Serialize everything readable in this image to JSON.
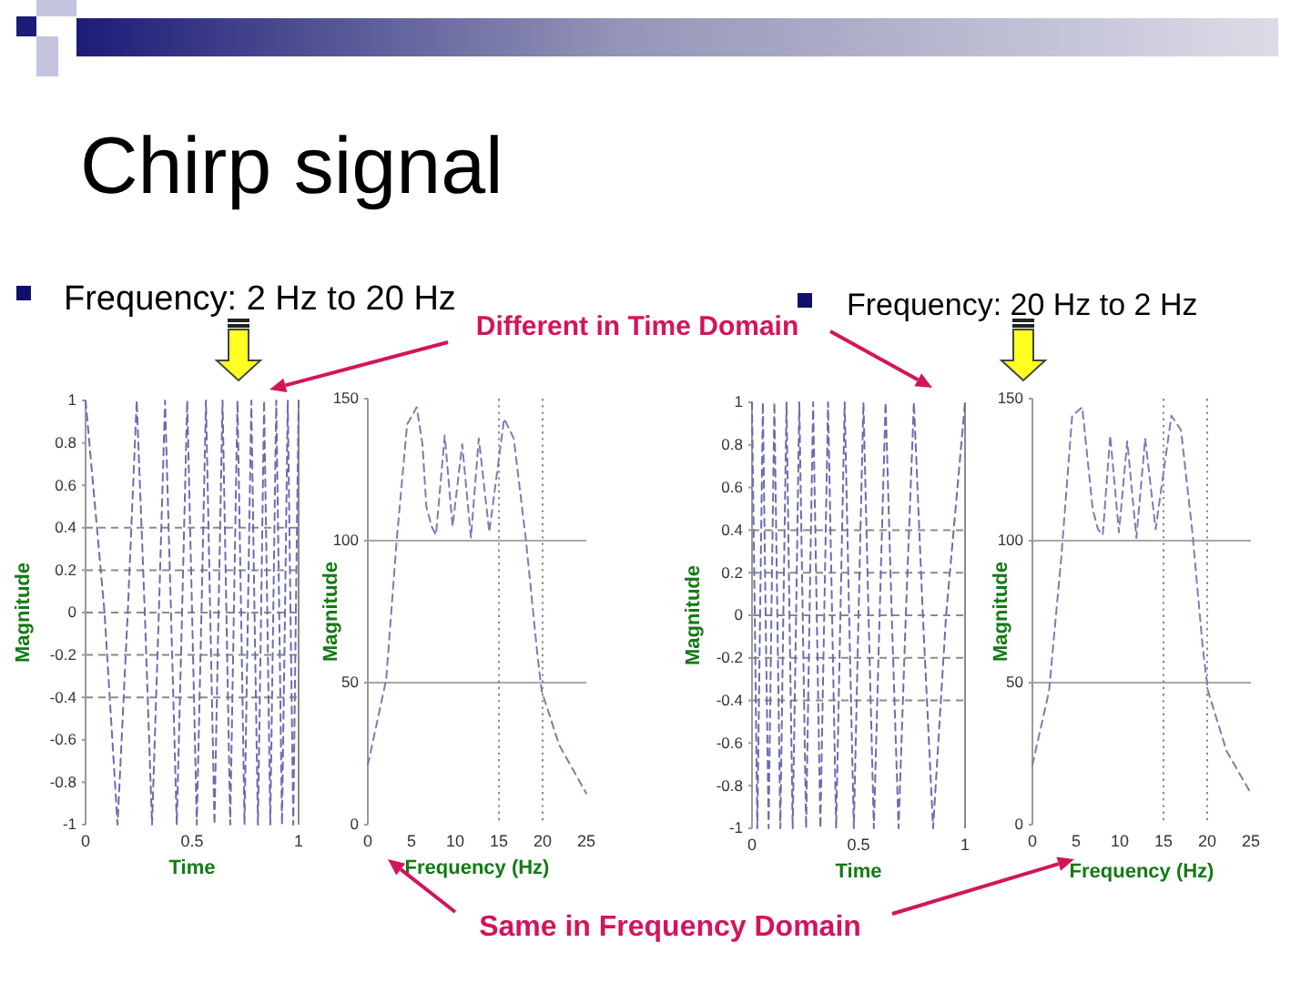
{
  "chart_data": [
    {
      "type": "line",
      "title": "Chirp signal",
      "subtitle": "Frequency: 2 Hz to 20 Hz",
      "xlabel": "Time",
      "ylabel": "Magnitude",
      "annotations": [
        "Different in Time Domain"
      ],
      "x": [
        0,
        0.089,
        0.15,
        0.198,
        0.24,
        0.278,
        0.312,
        0.344,
        0.373,
        0.401,
        0.428,
        0.453,
        0.477,
        0.5,
        0.522,
        0.544,
        0.565,
        0.585,
        0.605,
        0.624,
        0.643,
        0.661,
        0.679,
        0.696,
        0.713,
        0.73,
        0.746,
        0.762,
        0.778,
        0.793,
        0.809,
        0.824,
        0.838,
        0.853,
        0.867,
        0.881,
        0.895,
        0.909,
        0.922,
        0.936,
        0.949,
        0.962,
        0.975,
        0.987,
        1
      ],
      "series": [
        {
          "color": "#6c6cb0",
          "values": [
            1,
            0,
            -1,
            0,
            1,
            0,
            -1,
            0,
            1,
            0,
            -1,
            0,
            1,
            0,
            -1,
            0,
            1,
            0,
            -1,
            0,
            1,
            0,
            -1,
            0,
            1,
            0,
            -1,
            0,
            1,
            0,
            -1,
            0,
            1,
            0,
            -1,
            0,
            1,
            0,
            -1,
            0,
            1,
            0,
            -1,
            0,
            1
          ]
        }
      ],
      "xlim": [
        0,
        1
      ],
      "ylim": [
        -1,
        1
      ],
      "xticks": [
        0,
        0.5,
        1
      ],
      "yticks": [
        1,
        0.8,
        0.6,
        0.4,
        0.2,
        0,
        -0.2,
        -0.4,
        -0.6,
        -0.8,
        -1
      ],
      "ref_lines": [
        {
          "axis": "y",
          "value": 0.4,
          "line_style": "dashed",
          "color": "#8a8a8a"
        },
        {
          "axis": "y",
          "value": 0.2,
          "line_style": "dashed",
          "color": "#8a8a8a"
        },
        {
          "axis": "y",
          "value": 0,
          "line_style": "dashed",
          "color": "#8a8a8a"
        },
        {
          "axis": "y",
          "value": -0.2,
          "line_style": "dashed",
          "color": "#8a8a8a"
        },
        {
          "axis": "y",
          "value": -0.4,
          "line_style": "dashed",
          "color": "#8a8a8a"
        },
        {
          "axis": "x",
          "value": 1,
          "color": "#8a8a8a"
        }
      ],
      "line_style": "dashed"
    },
    {
      "type": "line",
      "xlabel": "Frequency (Hz)",
      "ylabel": "Magnitude",
      "annotations": [
        "Same in Frequency Domain"
      ],
      "x": [
        0,
        2.1,
        3.3,
        4.5,
        5.6,
        6.25,
        6.7,
        7.3,
        7.8,
        8.8,
        9.7,
        10.8,
        11.8,
        12.7,
        13.9,
        15.6,
        16.7,
        18.1,
        19.4,
        19.9,
        21.9,
        25
      ],
      "series": [
        {
          "color": "#7c7cb4",
          "values": [
            21,
            51,
            100,
            141,
            147,
            134,
            112,
            105,
            102,
            137,
            105,
            134,
            101,
            136,
            103,
            143,
            136,
            100,
            60,
            47,
            28,
            11
          ]
        }
      ],
      "xlim": [
        0,
        25
      ],
      "ylim": [
        0,
        150
      ],
      "xticks": [
        0,
        5,
        10,
        15,
        20,
        25
      ],
      "yticks": [
        0,
        50,
        100,
        150
      ],
      "ref_lines": [
        {
          "axis": "y",
          "value": 100,
          "color": "#a8a8a8"
        },
        {
          "axis": "y",
          "value": 50,
          "color": "#a8a8a8"
        },
        {
          "axis": "x",
          "value": 15,
          "line_style": "dotted",
          "color": "#8a8a8a"
        },
        {
          "axis": "x",
          "value": 20,
          "line_style": "dotted",
          "color": "#8a8a8a"
        }
      ],
      "line_style": "dashed"
    },
    {
      "type": "line",
      "subtitle": "Frequency: 20 Hz to 2 Hz",
      "xlabel": "Time",
      "ylabel": "Magnitude",
      "x": [
        0,
        0.013,
        0.025,
        0.038,
        0.051,
        0.064,
        0.078,
        0.091,
        0.105,
        0.119,
        0.133,
        0.147,
        0.162,
        0.176,
        0.191,
        0.207,
        0.222,
        0.238,
        0.254,
        0.27,
        0.287,
        0.304,
        0.321,
        0.339,
        0.357,
        0.376,
        0.395,
        0.415,
        0.435,
        0.456,
        0.478,
        0.5,
        0.523,
        0.547,
        0.572,
        0.599,
        0.627,
        0.656,
        0.688,
        0.722,
        0.76,
        0.802,
        0.85,
        0.911,
        1
      ],
      "series": [
        {
          "color": "#6c6cb0",
          "values": [
            1,
            0,
            -1,
            0,
            1,
            0,
            -1,
            0,
            1,
            0,
            -1,
            0,
            1,
            0,
            -1,
            0,
            1,
            0,
            -1,
            0,
            1,
            0,
            -1,
            0,
            1,
            0,
            -1,
            0,
            1,
            0,
            -1,
            0,
            1,
            0,
            -1,
            0,
            1,
            0,
            -1,
            0,
            1,
            0,
            -1,
            0,
            1
          ]
        }
      ],
      "xlim": [
        0,
        1
      ],
      "ylim": [
        -1,
        1
      ],
      "xticks": [
        0,
        0.5,
        1
      ],
      "yticks": [
        1,
        0.8,
        0.6,
        0.4,
        0.2,
        0,
        -0.2,
        -0.4,
        -0.6,
        -0.8,
        -1
      ],
      "ref_lines": [
        {
          "axis": "y",
          "value": 0.4,
          "line_style": "dashed",
          "color": "#8a8a8a"
        },
        {
          "axis": "y",
          "value": 0.2,
          "line_style": "dashed",
          "color": "#8a8a8a"
        },
        {
          "axis": "y",
          "value": 0,
          "line_style": "dashed",
          "color": "#8a8a8a"
        },
        {
          "axis": "y",
          "value": -0.2,
          "line_style": "dashed",
          "color": "#8a8a8a"
        },
        {
          "axis": "y",
          "value": -0.4,
          "line_style": "dashed",
          "color": "#8a8a8a"
        },
        {
          "axis": "x",
          "value": 1,
          "color": "#8a8a8a"
        }
      ],
      "line_style": "dashed"
    },
    {
      "type": "line",
      "xlabel": "Frequency (Hz)",
      "ylabel": "Magnitude",
      "x": [
        0,
        1.9,
        3.3,
        4.55,
        5.7,
        6.4,
        6.9,
        7.5,
        8.05,
        8.9,
        9.9,
        10.85,
        11.9,
        12.9,
        14.1,
        15.9,
        17,
        18.3,
        19.5,
        20.1,
        22.2,
        25
      ],
      "series": [
        {
          "color": "#7c7cb4",
          "values": [
            21,
            47,
            94,
            144,
            147,
            126,
            111,
            104,
            102,
            137,
            103,
            135,
            101,
            136,
            104,
            144,
            139,
            103,
            62,
            47,
            26,
            11
          ]
        }
      ],
      "xlim": [
        0,
        25
      ],
      "ylim": [
        0,
        150
      ],
      "xticks": [
        0,
        5,
        10,
        15,
        20,
        25
      ],
      "yticks": [
        0,
        50,
        100,
        150
      ],
      "ref_lines": [
        {
          "axis": "y",
          "value": 100,
          "color": "#a8a8a8"
        },
        {
          "axis": "y",
          "value": 50,
          "color": "#a8a8a8"
        },
        {
          "axis": "x",
          "value": 15,
          "line_style": "dotted",
          "color": "#8a8a8a"
        },
        {
          "axis": "x",
          "value": 20,
          "line_style": "dotted",
          "color": "#8a8a8a"
        }
      ],
      "line_style": "dashed"
    }
  ]
}
